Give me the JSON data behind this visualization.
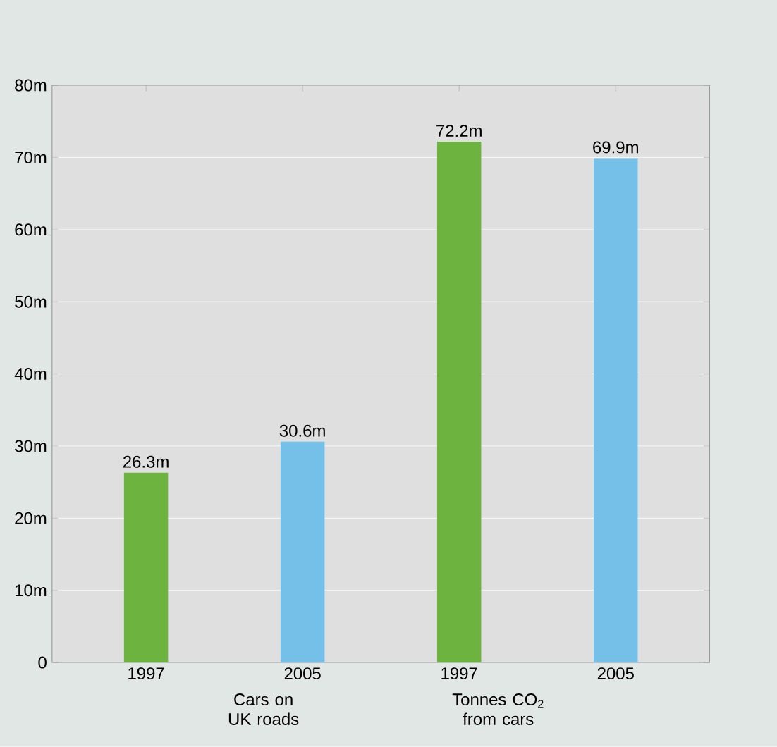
{
  "chart_data": {
    "type": "bar",
    "categories": [
      "1997",
      "2005",
      "1997",
      "2005"
    ],
    "values": [
      26.3,
      30.6,
      72.2,
      69.9
    ],
    "colors": [
      "#6cb33f",
      "#74c0e8",
      "#6cb33f",
      "#74c0e8"
    ],
    "value_labels": [
      "26.3m",
      "30.6m",
      "72.2m",
      "69.9m"
    ],
    "ylim": [
      0,
      80
    ],
    "yticks": [
      0,
      {
        "value": 10,
        "label": "10m"
      },
      {
        "value": 20,
        "label": "20m"
      },
      {
        "value": 30,
        "label": "30m"
      },
      {
        "value": 40,
        "label": "40m"
      },
      {
        "value": 50,
        "label": "50m"
      },
      {
        "value": 60,
        "label": "60m"
      },
      {
        "value": 70,
        "label": "70m"
      },
      {
        "value": 80,
        "label": "80m"
      }
    ],
    "grid": "y",
    "annotations": [
      "Cars on UK roads",
      "Tonnes CO$_{2}$ from cars"
    ]
  }
}
